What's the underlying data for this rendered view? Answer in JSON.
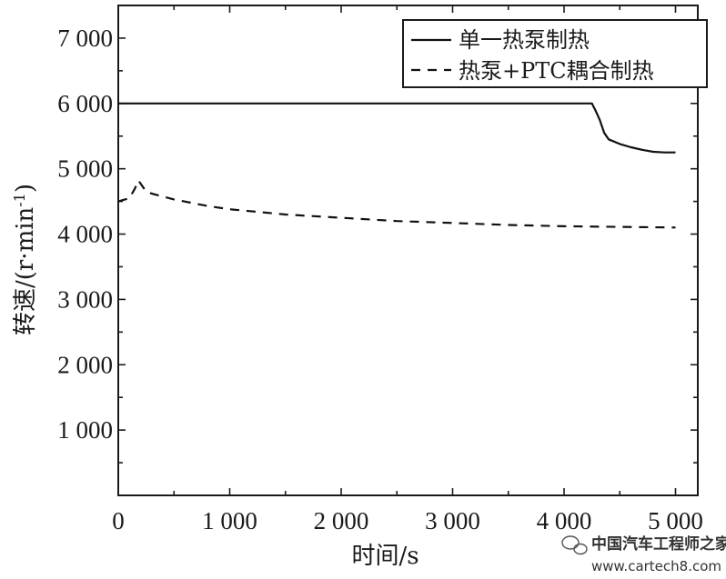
{
  "chart_data": {
    "type": "line",
    "xlabel": "时间/s",
    "ylabel_main": "转速/(r·min",
    "ylabel_sup": "-1",
    "ylabel_close": ")",
    "xlim": [
      0,
      5200
    ],
    "ylim": [
      0,
      7500
    ],
    "x_ticks": [
      0,
      1000,
      2000,
      3000,
      4000,
      5000
    ],
    "x_tick_labels": [
      "0",
      "1 000",
      "2 000",
      "3 000",
      "4 000",
      "5 000"
    ],
    "y_ticks": [
      1000,
      2000,
      3000,
      4000,
      5000,
      6000,
      7000
    ],
    "y_tick_labels": [
      "1 000",
      "2 000",
      "3 000",
      "4 000",
      "5 000",
      "6 000",
      "7 000"
    ],
    "legend_position": "top-right",
    "series": [
      {
        "name": "单一热泵制热",
        "style": "solid",
        "color": "#111111",
        "x": [
          0,
          4250,
          4280,
          4320,
          4360,
          4400,
          4500,
          4600,
          4700,
          4800,
          4900,
          5000
        ],
        "y": [
          6000,
          6000,
          5900,
          5750,
          5550,
          5450,
          5380,
          5330,
          5290,
          5260,
          5250,
          5250
        ]
      },
      {
        "name": "热泵+PTC耦合制热",
        "style": "dashed",
        "color": "#111111",
        "x": [
          0,
          100,
          150,
          180,
          210,
          250,
          300,
          500,
          800,
          1000,
          1500,
          2000,
          2500,
          3000,
          3500,
          4000,
          4500,
          5000
        ],
        "y": [
          4500,
          4550,
          4700,
          4820,
          4750,
          4650,
          4620,
          4530,
          4430,
          4380,
          4300,
          4250,
          4200,
          4170,
          4140,
          4120,
          4110,
          4100
        ]
      }
    ]
  },
  "watermark": {
    "line1": "中国汽车工程师之家",
    "line2": "www.cartech8.com"
  }
}
